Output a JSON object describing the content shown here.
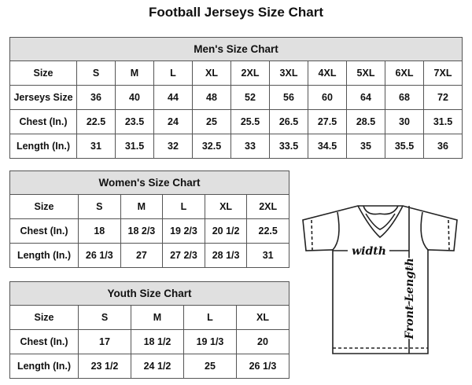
{
  "title": "Football Jerseys Size Chart",
  "men": {
    "title": "Men's Size Chart",
    "rows": [
      [
        "Size",
        "S",
        "M",
        "L",
        "XL",
        "2XL",
        "3XL",
        "4XL",
        "5XL",
        "6XL",
        "7XL"
      ],
      [
        "Jerseys Size",
        "36",
        "40",
        "44",
        "48",
        "52",
        "56",
        "60",
        "64",
        "68",
        "72"
      ],
      [
        "Chest (In.)",
        "22.5",
        "23.5",
        "24",
        "25",
        "25.5",
        "26.5",
        "27.5",
        "28.5",
        "30",
        "31.5"
      ],
      [
        "Length (In.)",
        "31",
        "31.5",
        "32",
        "32.5",
        "33",
        "33.5",
        "34.5",
        "35",
        "35.5",
        "36"
      ]
    ]
  },
  "women": {
    "title": "Women's Size Chart",
    "rows": [
      [
        "Size",
        "S",
        "M",
        "L",
        "XL",
        "2XL"
      ],
      [
        "Chest (In.)",
        "18",
        "18 2/3",
        "19 2/3",
        "20 1/2",
        "22.5"
      ],
      [
        "Length (In.)",
        "26 1/3",
        "27",
        "27 2/3",
        "28 1/3",
        "31"
      ]
    ]
  },
  "youth": {
    "title": "Youth Size Chart",
    "rows": [
      [
        "Size",
        "S",
        "M",
        "L",
        "XL"
      ],
      [
        "Chest (In.)",
        "17",
        "18 1/2",
        "19 1/3",
        "20"
      ],
      [
        "Length (In.)",
        "23 1/2",
        "24 1/2",
        "25",
        "26 1/3"
      ]
    ]
  },
  "diagram": {
    "width_label": "width",
    "length_label": "Front Length"
  }
}
